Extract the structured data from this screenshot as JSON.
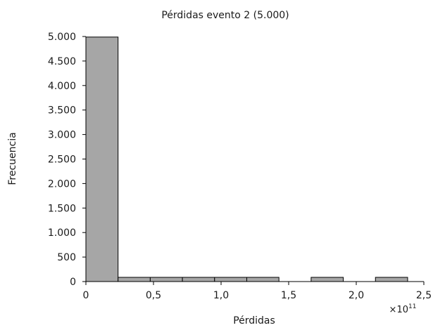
{
  "chart_data": {
    "type": "bar",
    "title": "Pérdidas evento 2 (5.000)",
    "xlabel": "Pérdidas",
    "ylabel": "Frecuencia",
    "x_multiplier": "×10",
    "x_exponent": "11",
    "xlim": [
      0,
      2.5
    ],
    "ylim": [
      0,
      5000
    ],
    "x_ticks": [
      {
        "value": 0,
        "label": "0"
      },
      {
        "value": 0.5,
        "label": "0,5"
      },
      {
        "value": 1.0,
        "label": "1,0"
      },
      {
        "value": 1.5,
        "label": "1,5"
      },
      {
        "value": 2.0,
        "label": "2,0"
      },
      {
        "value": 2.5,
        "label": "2,5"
      }
    ],
    "y_ticks": [
      {
        "value": 0,
        "label": "0"
      },
      {
        "value": 500,
        "label": "500"
      },
      {
        "value": 1000,
        "label": "1.000"
      },
      {
        "value": 1500,
        "label": "1.500"
      },
      {
        "value": 2000,
        "label": "2.000"
      },
      {
        "value": 2500,
        "label": "2.500"
      },
      {
        "value": 3000,
        "label": "3.000"
      },
      {
        "value": 3500,
        "label": "3.500"
      },
      {
        "value": 4000,
        "label": "4.000"
      },
      {
        "value": 4500,
        "label": "4.500"
      },
      {
        "value": 5000,
        "label": "5.000"
      }
    ],
    "grid": false,
    "bins": [
      {
        "x0": 0.0,
        "x1": 0.238,
        "count": 4989
      },
      {
        "x0": 0.238,
        "x1": 0.476,
        "count": 3
      },
      {
        "x0": 0.476,
        "x1": 0.714,
        "count": 2
      },
      {
        "x0": 0.714,
        "x1": 0.952,
        "count": 1
      },
      {
        "x0": 0.952,
        "x1": 1.19,
        "count": 1
      },
      {
        "x0": 1.19,
        "x1": 1.428,
        "count": 1
      },
      {
        "x0": 1.428,
        "x1": 1.666,
        "count": 0
      },
      {
        "x0": 1.666,
        "x1": 1.904,
        "count": 1
      },
      {
        "x0": 1.904,
        "x1": 2.142,
        "count": 0
      },
      {
        "x0": 2.142,
        "x1": 2.38,
        "count": 2
      }
    ]
  }
}
